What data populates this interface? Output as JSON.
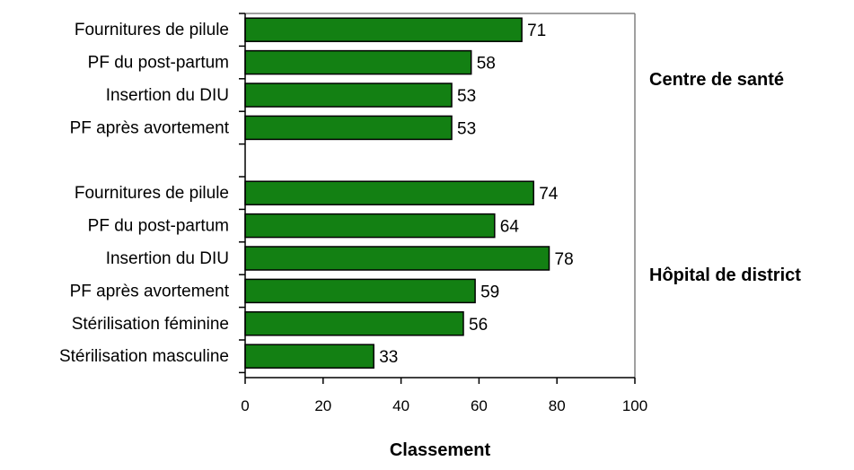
{
  "chart_data": {
    "type": "bar",
    "orientation": "horizontal",
    "xlabel": "Classement",
    "xlim": [
      0,
      100
    ],
    "x_ticks": [
      0,
      20,
      40,
      60,
      80,
      100
    ],
    "bar_color": "#138013",
    "bar_border_color": "#000000",
    "grid": false,
    "legend": "none",
    "groups": [
      {
        "name": "Centre de santé",
        "categories": [
          "Fournitures de pilule",
          "PF du post-partum",
          "Insertion du DIU",
          "PF après avortement"
        ],
        "values": [
          71,
          58,
          53,
          53
        ]
      },
      {
        "name": "Hôpital de district",
        "categories": [
          "Fournitures de pilule",
          "PF du post-partum",
          "Insertion du DIU",
          "PF après avortement",
          "Stérilisation féminine",
          "Stérilisation masculine"
        ],
        "values": [
          74,
          64,
          78,
          59,
          56,
          33
        ]
      }
    ]
  }
}
